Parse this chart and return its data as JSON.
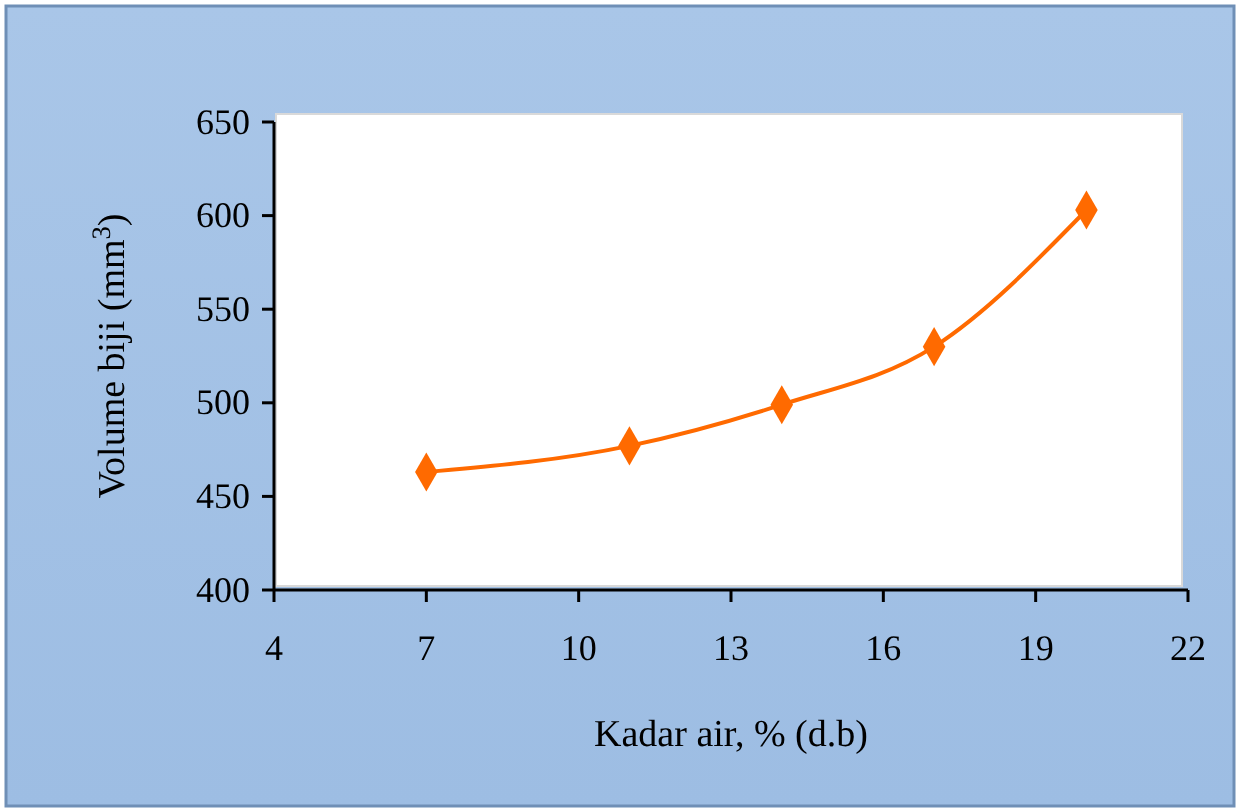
{
  "chart_data": {
    "type": "line",
    "xlabel": "Kadar air, % (d.b)",
    "ylabel": "Volume biji (mm$^{3}$)",
    "x": [
      7,
      11,
      14,
      17,
      20
    ],
    "series": [
      {
        "color": "#ff6a00",
        "values": [
          463,
          477,
          499,
          530,
          603
        ]
      }
    ],
    "xlim": [
      4,
      22
    ],
    "xticks": [
      4,
      7,
      10,
      13,
      16,
      19,
      22
    ],
    "ylim": [
      400,
      650
    ],
    "yticks": [
      400,
      450,
      500,
      550,
      600,
      650
    ],
    "marker": "diamond",
    "line_style": "solid",
    "grid": false,
    "legend": false
  }
}
